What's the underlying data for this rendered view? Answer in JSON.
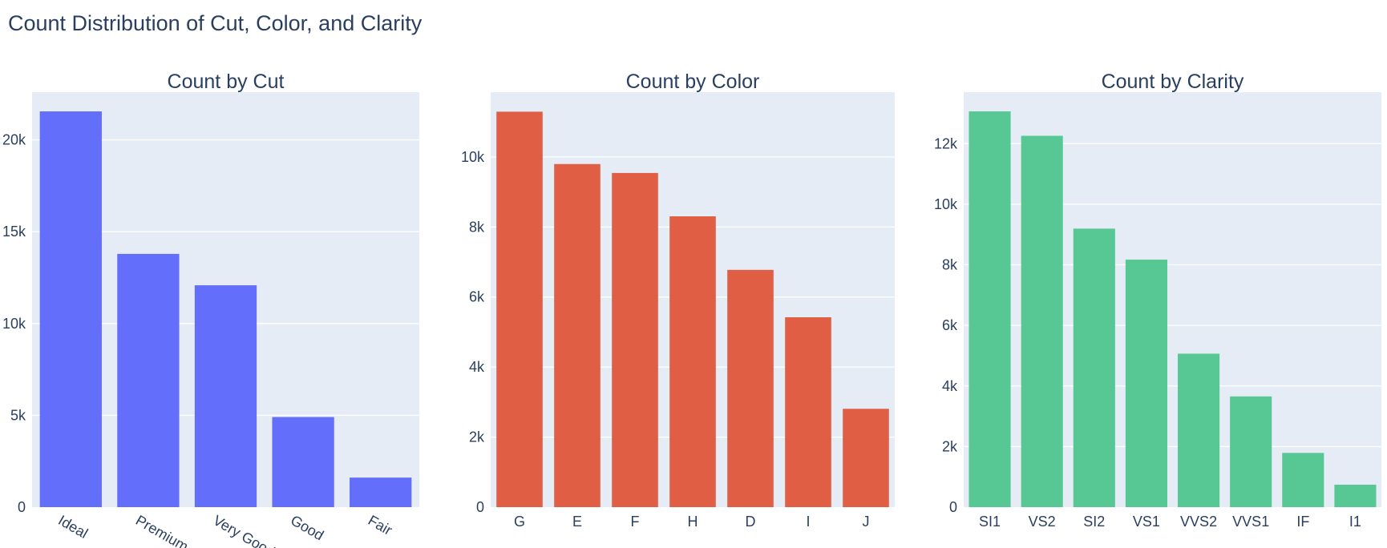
{
  "page": {
    "title": "Count Distribution of Cut, Color, and Clarity"
  },
  "chart_data": [
    {
      "type": "bar",
      "title": "Count by Cut",
      "categories": [
        "Ideal",
        "Premium",
        "Very Good",
        "Good",
        "Fair"
      ],
      "values": [
        21551,
        13791,
        12082,
        4906,
        1610
      ],
      "ylim": [
        0,
        22600
      ],
      "yticks": [
        0,
        5000,
        10000,
        15000,
        20000
      ],
      "ytick_labels": [
        "0",
        "5k",
        "10k",
        "15k",
        "20k"
      ],
      "color": "#636efa",
      "rotate_labels": true,
      "grid": true
    },
    {
      "type": "bar",
      "title": "Count by Color",
      "categories": [
        "G",
        "E",
        "F",
        "H",
        "D",
        "I",
        "J"
      ],
      "values": [
        11292,
        9797,
        9542,
        8304,
        6775,
        5422,
        2808
      ],
      "ylim": [
        0,
        11850
      ],
      "yticks": [
        0,
        2000,
        4000,
        6000,
        8000,
        10000
      ],
      "ytick_labels": [
        "0",
        "2k",
        "4k",
        "6k",
        "8k",
        "10k"
      ],
      "color": "#e05e44",
      "rotate_labels": false,
      "grid": true
    },
    {
      "type": "bar",
      "title": "Count by Clarity",
      "categories": [
        "SI1",
        "VS2",
        "SI2",
        "VS1",
        "VVS2",
        "VVS1",
        "IF",
        "I1"
      ],
      "values": [
        13065,
        12258,
        9194,
        8171,
        5066,
        3655,
        1790,
        741
      ],
      "ylim": [
        0,
        13700
      ],
      "yticks": [
        0,
        2000,
        4000,
        6000,
        8000,
        10000,
        12000
      ],
      "ytick_labels": [
        "0",
        "2k",
        "4k",
        "6k",
        "8k",
        "10k",
        "12k"
      ],
      "color": "#57c893",
      "rotate_labels": false,
      "grid": true
    }
  ]
}
